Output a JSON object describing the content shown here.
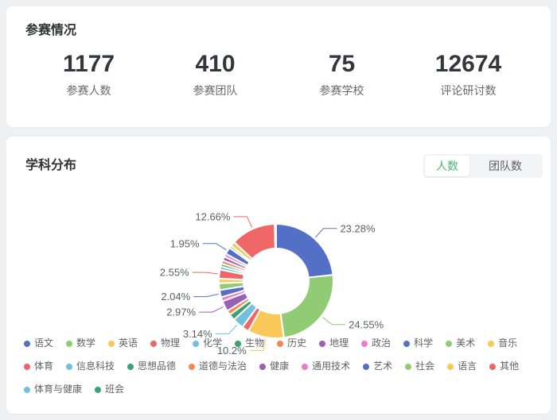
{
  "participation": {
    "title": "参赛情况",
    "stats": [
      {
        "value": "1177",
        "label": "参赛人数"
      },
      {
        "value": "410",
        "label": "参赛团队"
      },
      {
        "value": "75",
        "label": "参赛学校"
      },
      {
        "value": "12674",
        "label": "评论研讨数"
      }
    ]
  },
  "subjects": {
    "title": "学科分布",
    "toggle": {
      "people_label": "人数",
      "teams_label": "团队数",
      "active": "人数",
      "active_text_color": "#49b86e"
    }
  },
  "chart_data": {
    "type": "pie",
    "donut": true,
    "unit": "%",
    "legend_position": "bottom",
    "label_text_color": "#5b5f66",
    "series": [
      {
        "name": "语文",
        "value": 23.28,
        "color": "#5470c6",
        "label": "23.28%"
      },
      {
        "name": "数学",
        "value": 24.55,
        "color": "#91cc75",
        "label": "24.55%"
      },
      {
        "name": "英语",
        "value": 10.2,
        "color": "#fac858",
        "label": "10.2%"
      },
      {
        "name": "物理",
        "value": 2.0,
        "color": "#ee6666",
        "label": null
      },
      {
        "name": "化学",
        "value": 3.14,
        "color": "#73c0de",
        "label": "3.14%"
      },
      {
        "name": "生物",
        "value": 1.8,
        "color": "#3ba272",
        "label": null
      },
      {
        "name": "历史",
        "value": 1.3,
        "color": "#fc8452",
        "label": null
      },
      {
        "name": "地理",
        "value": 2.97,
        "color": "#9a60b4",
        "label": "2.97%"
      },
      {
        "name": "政治",
        "value": 1.2,
        "color": "#ea7ccc",
        "label": null
      },
      {
        "name": "科学",
        "value": 2.04,
        "color": "#5470c6",
        "label": "2.04%"
      },
      {
        "name": "美术",
        "value": 1.9,
        "color": "#91cc75",
        "label": null
      },
      {
        "name": "音乐",
        "value": 1.3,
        "color": "#fac858",
        "label": null
      },
      {
        "name": "体育",
        "value": 2.55,
        "color": "#ee6666",
        "label": "2.55%"
      },
      {
        "name": "信息科技",
        "value": 0.9,
        "color": "#73c0de",
        "label": null
      },
      {
        "name": "思想品德",
        "value": 0.8,
        "color": "#3ba272",
        "label": null
      },
      {
        "name": "道德与法治",
        "value": 1.0,
        "color": "#fc8452",
        "label": null
      },
      {
        "name": "健康",
        "value": 1.1,
        "color": "#9a60b4",
        "label": null
      },
      {
        "name": "通用技术",
        "value": 0.9,
        "color": "#ea7ccc",
        "label": null
      },
      {
        "name": "艺术",
        "value": 1.95,
        "color": "#5470c6",
        "label": "1.95%"
      },
      {
        "name": "社会",
        "value": 0.7,
        "color": "#91cc75",
        "label": null
      },
      {
        "name": "语言",
        "value": 1.36,
        "color": "#fac858",
        "label": null
      },
      {
        "name": "其他",
        "value": 12.66,
        "color": "#ee6666",
        "label": "12.66%"
      },
      {
        "name": "体育与健康",
        "value": 0.25,
        "color": "#73c0de",
        "label": null
      },
      {
        "name": "班会",
        "value": 0.15,
        "color": "#3ba272",
        "label": null
      }
    ]
  }
}
